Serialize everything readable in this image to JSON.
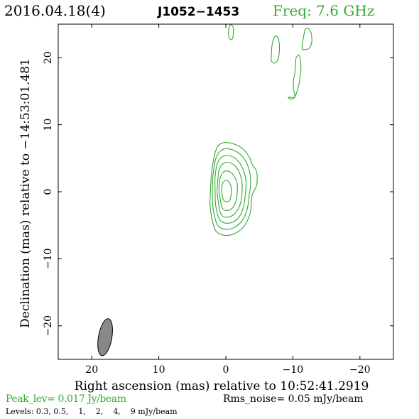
{
  "header": {
    "date": "2016.04.18(4)",
    "source": "J1052−1453",
    "freq": "Freq: 7.6 GHz"
  },
  "axes": {
    "xlabel": "Right ascension (mas) relative to 10:52:41.2919",
    "ylabel": "Declination (mas) relative to −14:53:01.481"
  },
  "footer": {
    "peak": "Peak_lev=  0.017 Jy/beam",
    "rms": "Rms_noise= 0.05 mJy/beam",
    "levels": "Levels: 0.3, 0.5,    1,    2,    4,    9 mJy/beam"
  },
  "colors": {
    "contour": "#33aa33",
    "beam": "#888888",
    "axis": "#000000"
  },
  "chart_data": {
    "type": "contour",
    "title": "J1052−1453",
    "xlabel": "Right ascension (mas) relative to 10:52:41.2919",
    "ylabel": "Declination (mas) relative to −14:53:01.481",
    "xlim": [
      25,
      -25
    ],
    "ylim": [
      -25,
      25
    ],
    "x_ticks": [
      20,
      10,
      0,
      -10,
      -20
    ],
    "x_tick_labels": [
      "20",
      "10",
      "0",
      "−10",
      "−20"
    ],
    "y_ticks": [
      20,
      10,
      0,
      -10,
      -20
    ],
    "y_tick_labels": [
      "20",
      "10",
      "0",
      "−10",
      "−20"
    ],
    "peak_jy_per_beam": 0.017,
    "rms_noise_mjy_per_beam": 0.05,
    "levels_mjy_per_beam": [
      0.3,
      0.5,
      1,
      2,
      4,
      9
    ],
    "beam": {
      "x": 18.0,
      "y": -21.7,
      "major_mas": 5.6,
      "minor_mas": 2.0,
      "pa_deg": 10
    },
    "components": [
      {
        "label": "core",
        "x": -0.2,
        "y": 1.0,
        "contours": [
          {
            "level": 0.3,
            "pts": [
              [
                1.5,
                -5.8
              ],
              [
                -0.4,
                -6.5
              ],
              [
                -2.4,
                -5.5
              ],
              [
                -3.6,
                -3.3
              ],
              [
                -3.9,
                -0.6
              ],
              [
                -4.6,
                1.0
              ],
              [
                -4.6,
                3.0
              ],
              [
                -3.9,
                4.1
              ],
              [
                -3.5,
                5.2
              ],
              [
                -2.3,
                6.6
              ],
              [
                -0.5,
                7.3
              ],
              [
                0.9,
                7.1
              ],
              [
                1.6,
                5.8
              ],
              [
                2.1,
                3.0
              ],
              [
                2.3,
                0.0
              ],
              [
                2.3,
                -2.6
              ]
            ]
          },
          {
            "level": 0.5,
            "pts": [
              [
                1.2,
                -5.0
              ],
              [
                -0.3,
                -5.6
              ],
              [
                -2.0,
                -4.8
              ],
              [
                -3.1,
                -2.9
              ],
              [
                -3.5,
                -0.5
              ],
              [
                -3.7,
                1.8
              ],
              [
                -3.2,
                4.1
              ],
              [
                -2.0,
                5.7
              ],
              [
                -0.4,
                6.4
              ],
              [
                0.8,
                6.1
              ],
              [
                1.5,
                4.9
              ],
              [
                1.9,
                2.6
              ],
              [
                2.0,
                -0.1
              ],
              [
                1.9,
                -2.5
              ]
            ]
          },
          {
            "level": 1,
            "pts": [
              [
                0.9,
                -4.2
              ],
              [
                -0.3,
                -4.7
              ],
              [
                -1.7,
                -4.1
              ],
              [
                -2.6,
                -2.4
              ],
              [
                -2.9,
                -0.4
              ],
              [
                -3.0,
                1.6
              ],
              [
                -2.5,
                3.5
              ],
              [
                -1.5,
                4.9
              ],
              [
                -0.3,
                5.4
              ],
              [
                0.7,
                5.1
              ],
              [
                1.3,
                4.1
              ],
              [
                1.6,
                2.2
              ],
              [
                1.6,
                0.0
              ],
              [
                1.5,
                -2.1
              ]
            ]
          },
          {
            "level": 2,
            "pts": [
              [
                0.7,
                -3.4
              ],
              [
                -0.2,
                -3.8
              ],
              [
                -1.3,
                -3.3
              ],
              [
                -2.1,
                -2.0
              ],
              [
                -2.4,
                -0.3
              ],
              [
                -2.4,
                1.4
              ],
              [
                -2.0,
                2.9
              ],
              [
                -1.2,
                4.0
              ],
              [
                -0.2,
                4.4
              ],
              [
                0.5,
                4.1
              ],
              [
                1.0,
                3.3
              ],
              [
                1.2,
                1.8
              ],
              [
                1.3,
                0.0
              ],
              [
                1.1,
                -1.7
              ]
            ]
          },
          {
            "level": 4,
            "pts": [
              [
                0.5,
                -2.5
              ],
              [
                -0.2,
                -2.8
              ],
              [
                -1.0,
                -2.4
              ],
              [
                -1.5,
                -1.4
              ],
              [
                -1.7,
                -0.1
              ],
              [
                -1.7,
                1.2
              ],
              [
                -1.3,
                2.2
              ],
              [
                -0.7,
                2.9
              ],
              [
                0.0,
                3.1
              ],
              [
                0.5,
                2.8
              ],
              [
                0.8,
                2.2
              ],
              [
                1.0,
                1.2
              ],
              [
                1.0,
                0.0
              ],
              [
                0.8,
                -1.3
              ]
            ]
          },
          {
            "level": 9,
            "pts": [
              [
                0.3,
                -1.3
              ],
              [
                -0.2,
                -1.5
              ],
              [
                -0.6,
                -1.2
              ],
              [
                -0.8,
                -0.3
              ],
              [
                -0.8,
                0.6
              ],
              [
                -0.5,
                1.4
              ],
              [
                0.0,
                1.7
              ],
              [
                0.4,
                1.4
              ],
              [
                0.6,
                0.8
              ],
              [
                0.6,
                -0.1
              ],
              [
                0.5,
                -0.8
              ]
            ]
          }
        ]
      },
      {
        "label": "blob-a",
        "x": -0.8,
        "y": 23.9,
        "contours": [
          {
            "level": 0.3,
            "pts": [
              [
                -0.5,
                22.9
              ],
              [
                -0.9,
                22.7
              ],
              [
                -1.1,
                23.4
              ],
              [
                -1.1,
                24.5
              ],
              [
                -0.8,
                24.9
              ],
              [
                -0.5,
                24.6
              ],
              [
                -0.4,
                23.7
              ]
            ]
          }
        ]
      },
      {
        "label": "blob-b",
        "x": -7.4,
        "y": 21.5,
        "contours": [
          {
            "level": 0.3,
            "pts": [
              [
                -6.8,
                19.5
              ],
              [
                -7.3,
                19.2
              ],
              [
                -7.8,
                19.8
              ],
              [
                -8.0,
                21.3
              ],
              [
                -7.9,
                22.6
              ],
              [
                -7.6,
                23.2
              ],
              [
                -7.2,
                23.0
              ],
              [
                -6.9,
                21.9
              ],
              [
                -6.8,
                20.6
              ]
            ]
          }
        ]
      },
      {
        "label": "blob-c",
        "x": -12.2,
        "y": 22.7,
        "contours": [
          {
            "level": 0.3,
            "pts": [
              [
                -11.4,
                21.3
              ],
              [
                -11.8,
                21.2
              ],
              [
                -12.4,
                21.4
              ],
              [
                -12.8,
                22.2
              ],
              [
                -12.8,
                23.3
              ],
              [
                -12.6,
                24.0
              ],
              [
                -12.2,
                24.4
              ],
              [
                -11.8,
                24.1
              ],
              [
                -11.6,
                23.1
              ],
              [
                -11.4,
                22.1
              ]
            ]
          }
        ]
      },
      {
        "label": "blob-d",
        "x": -10.1,
        "y": 16.7,
        "contours": [
          {
            "level": 0.3,
            "pts": [
              [
                -9.3,
                14.1
              ],
              [
                -9.8,
                13.8
              ],
              [
                -10.3,
                14.2
              ],
              [
                -10.1,
                15.3
              ],
              [
                -10.1,
                16.6
              ],
              [
                -10.3,
                17.8
              ],
              [
                -10.4,
                19.1
              ],
              [
                -10.5,
                20.0
              ],
              [
                -10.9,
                20.4
              ],
              [
                -11.1,
                19.7
              ],
              [
                -11.2,
                18.6
              ],
              [
                -11.1,
                17.4
              ],
              [
                -10.9,
                16.0
              ],
              [
                -10.6,
                14.9
              ],
              [
                -10.2,
                14.1
              ]
            ]
          }
        ]
      }
    ]
  }
}
